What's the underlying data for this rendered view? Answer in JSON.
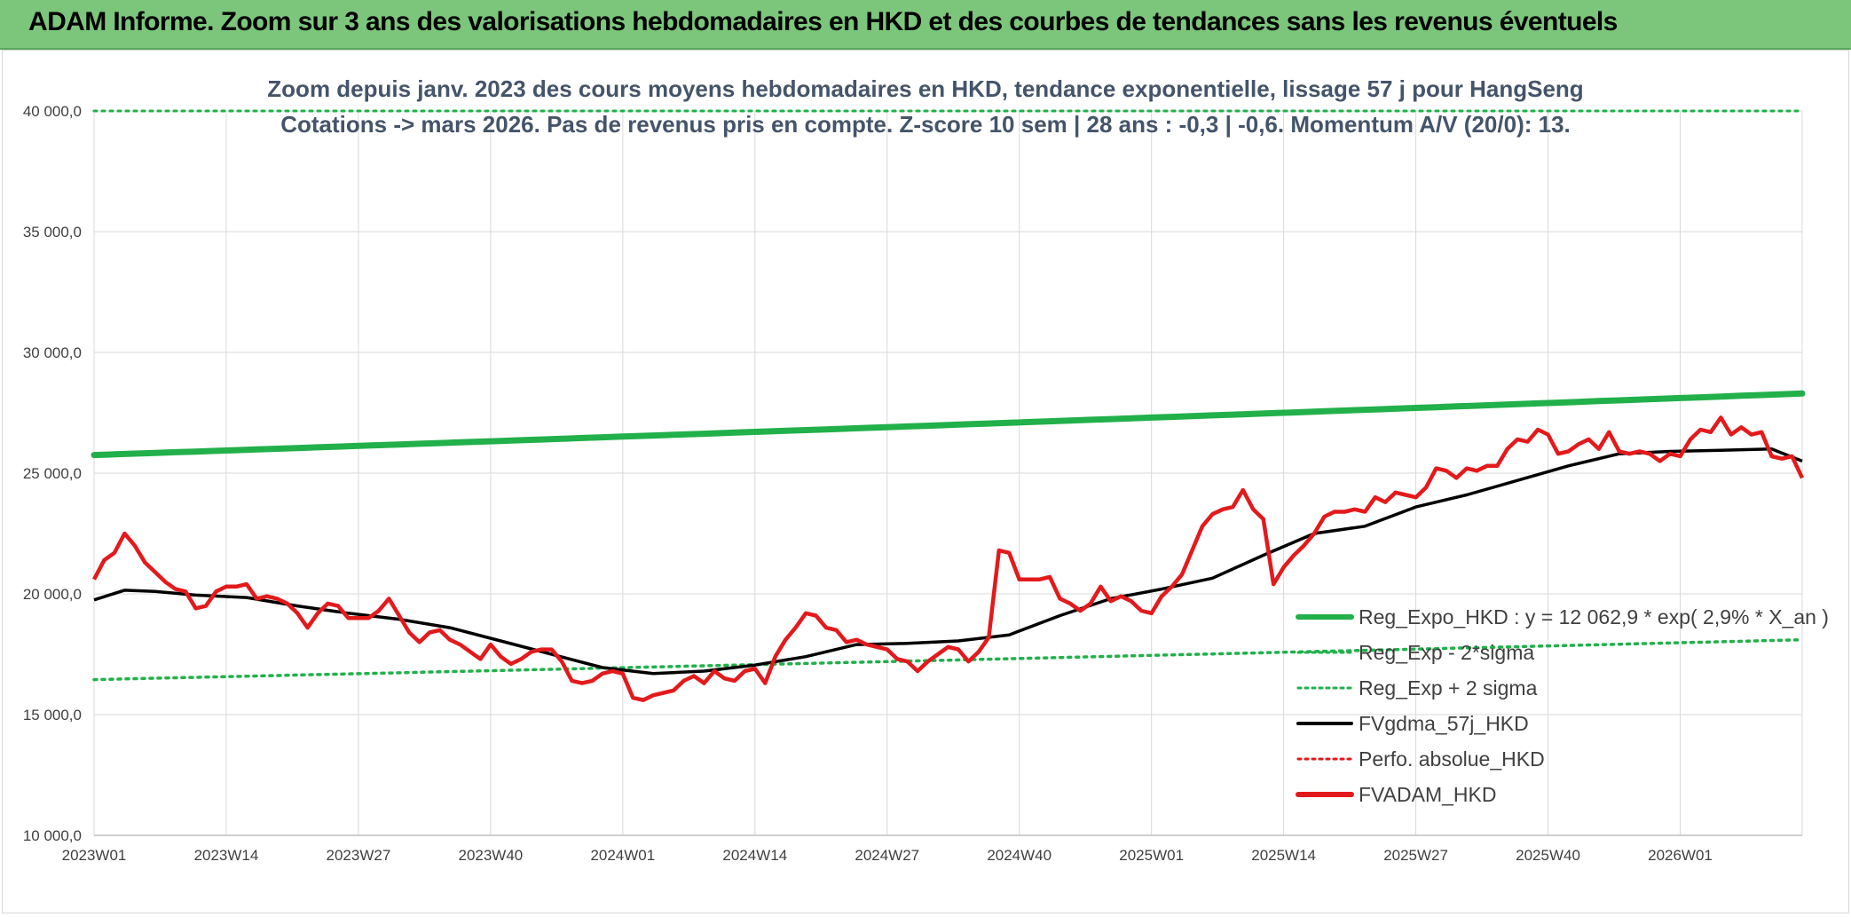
{
  "header": {
    "title": "ADAM Informe. Zoom sur 3 ans des valorisations hebdomadaires en HKD et des courbes de tendances sans les revenus éventuels"
  },
  "colors": {
    "banner": "#7cc67c",
    "reg_expo": "#22b04b",
    "reg_band": "#22b04b",
    "fvgdma": "#000000",
    "perfo": "#e31a1c",
    "fvadam": "#e31a1c",
    "grid": "#d9d9d9"
  },
  "chart_data": {
    "type": "line",
    "subtitle_line1": "Zoom depuis janv. 2023 des cours moyens hebdomadaires en HKD, tendance exponentielle, lissage 57 j pour HangSeng",
    "subtitle_line2": "Cotations -> mars 2026. Pas de revenus pris en compte. Z-score 10 sem | 28 ans : -0,3 | -0,6. Momentum A/V (20/0): 13.",
    "xlabel": "",
    "ylabel": "",
    "ylim": [
      10000,
      40000
    ],
    "y_ticks": [
      "10 000,0",
      "15 000,0",
      "20 000,0",
      "25 000,0",
      "30 000,0",
      "35 000,0",
      "40 000,0"
    ],
    "y_tick_values": [
      10000,
      15000,
      20000,
      25000,
      30000,
      35000,
      40000
    ],
    "x_ticks": [
      "2023W01",
      "2023W14",
      "2023W27",
      "2023W40",
      "2024W01",
      "2024W14",
      "2024W27",
      "2024W40",
      "2025W01",
      "2025W14",
      "2025W27",
      "2025W40",
      "2026W01"
    ],
    "grid": true,
    "legend_position": "right",
    "legend": [
      {
        "key": "reg_expo",
        "label": "Reg_Expo_HKD : y = 12 062,9 * exp( 2,9% *  X_an )",
        "style": "solid-thick",
        "color": "#22b04b"
      },
      {
        "key": "reg_minus",
        "label": "Reg_Exp - 2*sigma",
        "style": "dotted",
        "color": "#22b04b"
      },
      {
        "key": "reg_plus",
        "label": "Reg_Exp + 2 sigma",
        "style": "dotted",
        "color": "#22b04b"
      },
      {
        "key": "fvgdma",
        "label": "FVgdma_57j_HKD",
        "style": "solid",
        "color": "#000000"
      },
      {
        "key": "perfo",
        "label": "Perfo. absolue_HKD",
        "style": "dotted",
        "color": "#e31a1c"
      },
      {
        "key": "fvadam",
        "label": "FVADAM_HKD",
        "style": "solid-thick",
        "color": "#e31a1c"
      }
    ],
    "series": [
      {
        "key": "reg_expo",
        "name": "Reg_Expo_HKD : y = 12 062,9 * exp( 2,9% *  X_an )",
        "start": 25750,
        "end": 28300
      },
      {
        "key": "reg_minus",
        "name": "Reg_Exp - 2*sigma",
        "start": 16450,
        "end": 18100
      },
      {
        "key": "reg_plus",
        "name": "Reg_Exp + 2 sigma",
        "constant": 40000
      },
      {
        "key": "fvgdma",
        "name": "FVgdma_57j_HKD",
        "x": [
          0,
          3,
          6,
          10,
          15,
          20,
          25,
          30,
          35,
          40,
          45,
          50,
          52,
          55,
          60,
          65,
          70,
          75,
          80,
          85,
          90,
          95,
          100,
          105,
          110,
          115,
          120,
          125,
          130,
          135,
          140,
          145,
          150,
          155,
          160,
          165,
          168
        ],
        "values": [
          19750,
          20150,
          20100,
          19950,
          19850,
          19500,
          19200,
          18950,
          18600,
          18050,
          17500,
          16950,
          16850,
          16700,
          16800,
          17050,
          17400,
          17900,
          17950,
          18050,
          18300,
          19100,
          19800,
          20200,
          20650,
          21600,
          22500,
          22800,
          23600,
          24100,
          24700,
          25300,
          25800,
          25900,
          25950,
          26000,
          25500
        ]
      },
      {
        "key": "perfo",
        "name": "Perfo. absolue_HKD",
        "values": []
      },
      {
        "key": "fvadam",
        "name": "FVADAM_HKD",
        "x": [
          0,
          1,
          2,
          3,
          4,
          5,
          6,
          7,
          8,
          9,
          10,
          11,
          12,
          13,
          14,
          15,
          16,
          17,
          18,
          19,
          20,
          21,
          22,
          23,
          24,
          25,
          26,
          27,
          28,
          29,
          30,
          31,
          32,
          33,
          34,
          35,
          36,
          37,
          38,
          39,
          40,
          41,
          42,
          43,
          44,
          45,
          46,
          47,
          48,
          49,
          50,
          51,
          52,
          53,
          54,
          55,
          56,
          57,
          58,
          59,
          60,
          61,
          62,
          63,
          64,
          65,
          66,
          67,
          68,
          69,
          70,
          71,
          72,
          73,
          74,
          75,
          76,
          77,
          78,
          79,
          80,
          81,
          82,
          83,
          84,
          85,
          86,
          87,
          88,
          89,
          90,
          91,
          92,
          93,
          94,
          95,
          96,
          97,
          98,
          99,
          100,
          101,
          102,
          103,
          104,
          105,
          106,
          107,
          108,
          109,
          110,
          111,
          112,
          113,
          114,
          115,
          116,
          117,
          118,
          119,
          120,
          121,
          122,
          123,
          124,
          125,
          126,
          127,
          128,
          129,
          130,
          131,
          132,
          133,
          134,
          135,
          136,
          137,
          138,
          139,
          140,
          141,
          142,
          143,
          144,
          145,
          146,
          147,
          148,
          149,
          150,
          151,
          152,
          153,
          154,
          155,
          156,
          157,
          158,
          159,
          160,
          161,
          162,
          163,
          164,
          165,
          166,
          167,
          168
        ],
        "values": [
          20600,
          21400,
          21700,
          22500,
          22000,
          21300,
          20900,
          20500,
          20200,
          20100,
          19400,
          19500,
          20100,
          20300,
          20300,
          20400,
          19800,
          19900,
          19800,
          19600,
          19200,
          18600,
          19200,
          19600,
          19500,
          19000,
          19000,
          19000,
          19300,
          19800,
          19100,
          18400,
          18000,
          18400,
          18500,
          18100,
          17900,
          17600,
          17300,
          17900,
          17400,
          17100,
          17300,
          17600,
          17700,
          17700,
          17200,
          16400,
          16300,
          16400,
          16700,
          16800,
          16700,
          15700,
          15600,
          15800,
          15900,
          16000,
          16400,
          16600,
          16300,
          16800,
          16500,
          16400,
          16800,
          16900,
          16300,
          17400,
          18100,
          18600,
          19200,
          19100,
          18600,
          18500,
          18000,
          18100,
          17900,
          17800,
          17700,
          17300,
          17200,
          16800,
          17200,
          17500,
          17800,
          17700,
          17200,
          17600,
          18200,
          21800,
          21700,
          20600,
          20600,
          20600,
          20700,
          19800,
          19600,
          19300,
          19600,
          20300,
          19700,
          19900,
          19700,
          19300,
          19200,
          19900,
          20300,
          20800,
          21800,
          22800,
          23300,
          23500,
          23600,
          24300,
          23500,
          23100,
          20400,
          21100,
          21600,
          22000,
          22500,
          23200,
          23400,
          23400,
          23500,
          23400,
          24000,
          23800,
          24200,
          24100,
          24000,
          24400,
          25200,
          25100,
          24800,
          25200,
          25100,
          25300,
          25300,
          26000,
          26400,
          26300,
          26800,
          26600,
          25800,
          25900,
          26200,
          26400,
          26000,
          26700,
          25900,
          25800,
          25900,
          25800,
          25500,
          25800,
          25700,
          26400,
          26800,
          26700,
          27300,
          26600,
          26900,
          26600,
          26700,
          25700,
          25600,
          25700,
          24800
        ]
      }
    ]
  }
}
